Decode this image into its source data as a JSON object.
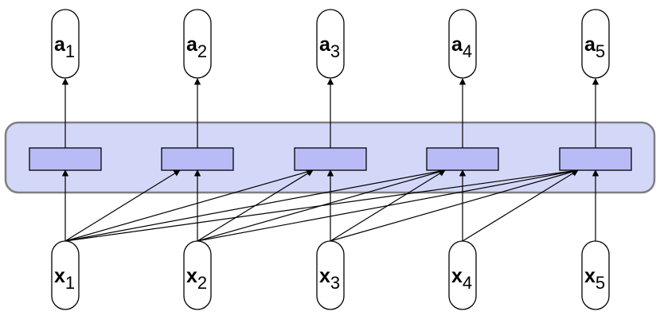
{
  "diagram": {
    "accent_band": "#d4d8f8",
    "accent_cell": "#b9bbf7",
    "inputs": [
      {
        "letter": "x",
        "sub": "1"
      },
      {
        "letter": "x",
        "sub": "2"
      },
      {
        "letter": "x",
        "sub": "3"
      },
      {
        "letter": "x",
        "sub": "4"
      },
      {
        "letter": "x",
        "sub": "5"
      }
    ],
    "outputs": [
      {
        "letter": "a",
        "sub": "1"
      },
      {
        "letter": "a",
        "sub": "2"
      },
      {
        "letter": "a",
        "sub": "3"
      },
      {
        "letter": "a",
        "sub": "4"
      },
      {
        "letter": "a",
        "sub": "5"
      }
    ],
    "connectivity": "each input connects to its own cell and every later cell (causal)"
  }
}
